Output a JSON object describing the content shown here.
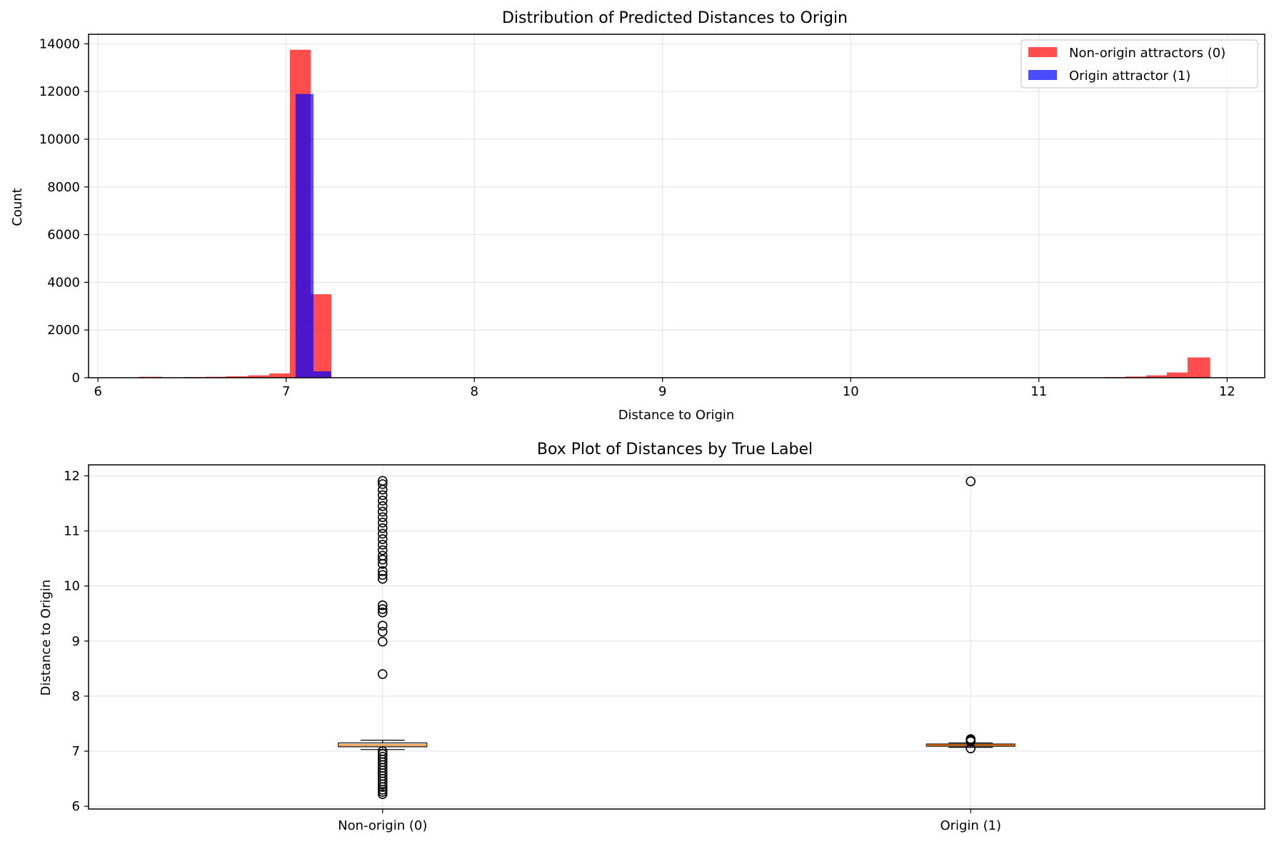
{
  "chart_data": [
    {
      "type": "histogram",
      "title": "Distribution of Predicted Distances to Origin",
      "xlabel": "Distance to Origin",
      "ylabel": "Count",
      "xlim": [
        5.95,
        12.2
      ],
      "ylim": [
        0,
        14400
      ],
      "xticks": [
        6,
        7,
        8,
        9,
        10,
        11,
        12
      ],
      "yticks": [
        0,
        2000,
        4000,
        6000,
        8000,
        10000,
        12000,
        14000
      ],
      "grid": true,
      "legend_position": "top-right",
      "series": [
        {
          "name": "Non-origin attractors (0)",
          "color": "#ff0000",
          "opacity": 0.7,
          "bins": [
            {
              "x0": 6.22,
              "x1": 6.34,
              "count": 40
            },
            {
              "x0": 6.34,
              "x1": 6.46,
              "count": 15
            },
            {
              "x0": 6.46,
              "x1": 6.57,
              "count": 30
            },
            {
              "x0": 6.57,
              "x1": 6.68,
              "count": 40
            },
            {
              "x0": 6.68,
              "x1": 6.8,
              "count": 60
            },
            {
              "x0": 6.8,
              "x1": 6.91,
              "count": 100
            },
            {
              "x0": 6.91,
              "x1": 7.02,
              "count": 180
            },
            {
              "x0": 7.02,
              "x1": 7.13,
              "count": 13750
            },
            {
              "x0": 7.13,
              "x1": 7.24,
              "count": 3500
            },
            {
              "x0": 11.35,
              "x1": 11.46,
              "count": 30
            },
            {
              "x0": 11.46,
              "x1": 11.57,
              "count": 50
            },
            {
              "x0": 11.57,
              "x1": 11.68,
              "count": 100
            },
            {
              "x0": 11.68,
              "x1": 11.79,
              "count": 220
            },
            {
              "x0": 11.79,
              "x1": 11.91,
              "count": 850
            }
          ]
        },
        {
          "name": "Origin attractor (1)",
          "color": "#0000ff",
          "opacity": 0.7,
          "bins": [
            {
              "x0": 7.05,
              "x1": 7.145,
              "count": 11900
            },
            {
              "x0": 7.145,
              "x1": 7.24,
              "count": 270
            }
          ]
        }
      ]
    },
    {
      "type": "box",
      "title": "Box Plot of Distances by True Label",
      "xlabel": "",
      "ylabel": "Distance to Origin",
      "ylim": [
        5.95,
        12.2
      ],
      "yticks": [
        6,
        7,
        8,
        9,
        10,
        11,
        12
      ],
      "grid": true,
      "categories": [
        "Non-origin (0)",
        "Origin (1)"
      ],
      "boxes": [
        {
          "label": "Non-origin (0)",
          "whisker_low": 7.03,
          "q1": 7.08,
          "median": 7.11,
          "q3": 7.15,
          "whisker_high": 7.2,
          "outliers": [
            6.22,
            6.26,
            6.3,
            6.35,
            6.4,
            6.45,
            6.5,
            6.55,
            6.6,
            6.65,
            6.7,
            6.75,
            6.8,
            6.85,
            6.9,
            6.95,
            7.0,
            8.4,
            8.99,
            9.17,
            9.28,
            9.52,
            9.58,
            9.65,
            10.13,
            10.2,
            10.27,
            10.4,
            10.48,
            10.55,
            10.65,
            10.75,
            10.85,
            10.95,
            11.05,
            11.15,
            11.25,
            11.35,
            11.45,
            11.55,
            11.65,
            11.75,
            11.85,
            11.91
          ]
        },
        {
          "label": "Origin (1)",
          "whisker_low": 7.07,
          "q1": 7.09,
          "median": 7.11,
          "q3": 7.13,
          "whisker_high": 7.15,
          "outliers": [
            7.05,
            7.18,
            7.2,
            7.22,
            11.9
          ]
        }
      ]
    }
  ]
}
